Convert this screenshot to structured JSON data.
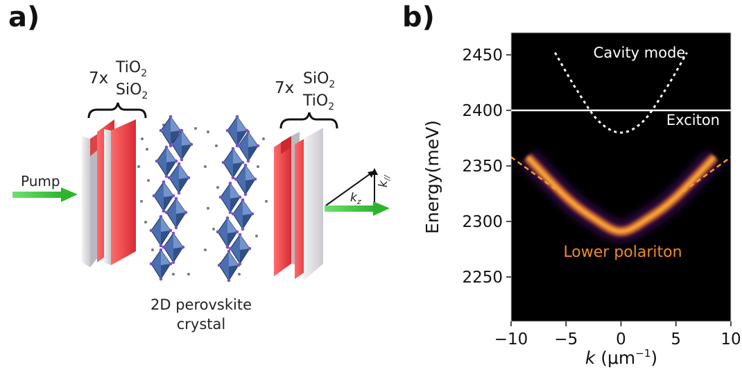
{
  "panel_a": {
    "letter": "a)",
    "left_mirror": {
      "multiplier": "7x",
      "top": "TiO",
      "bottom": "SiO",
      "sub": "2"
    },
    "right_mirror": {
      "multiplier": "7x",
      "top": "SiO",
      "bottom": "TiO",
      "sub": "2"
    },
    "pump_label": "Pump",
    "kz_label": "k",
    "kz_sub": "z",
    "kpar_label": "k",
    "kpar_sub": "//",
    "crystal_label_1": "2D perovskite",
    "crystal_label_2": "crystal",
    "colors": {
      "mirror_red": "#e0363c",
      "mirror_grey": "#dcdcdf",
      "octahedra": "#3b5f9a",
      "arrow_green": "#36c236"
    }
  },
  "panel_b": {
    "letter": "b)",
    "ylabel": "Energy(meV)",
    "xlabel_k": "k",
    "xlabel_unit": " (μm",
    "xlabel_exp": "−1",
    "xlabel_close": ")",
    "annotations": {
      "cavity": "Cavity mode",
      "exciton": "Exciton",
      "polariton": "Lower polariton"
    },
    "colors": {
      "background": "#000000",
      "cavity": "#ffffff",
      "exciton": "#ffffff",
      "polariton_fit": "#ff9a2a",
      "polariton_text": "#f08a24"
    }
  },
  "chart_data": {
    "type": "heatmap",
    "xlim": [
      -10,
      10
    ],
    "ylim": [
      2210,
      2470
    ],
    "xticks": [
      -10,
      -5,
      0,
      5,
      10
    ],
    "xtick_labels": [
      "−10",
      "−5",
      "0",
      "5",
      "10"
    ],
    "yticks": [
      2250,
      2300,
      2350,
      2400,
      2450
    ],
    "ytick_labels": [
      "2250",
      "2300",
      "2350",
      "2400",
      "2450"
    ],
    "grid": false,
    "exciton_energy": 2400,
    "cavity_mode": {
      "k": [
        -6,
        -4,
        -2,
        0,
        2,
        4,
        6
      ],
      "E": [
        2452,
        2418,
        2390,
        2380,
        2390,
        2418,
        2452
      ]
    },
    "lower_polariton_fit": {
      "k": [
        -10,
        -5,
        -2.5,
        0,
        2.5,
        5,
        10
      ],
      "E": [
        2358,
        2322,
        2303,
        2291,
        2303,
        2322,
        2358
      ]
    }
  }
}
